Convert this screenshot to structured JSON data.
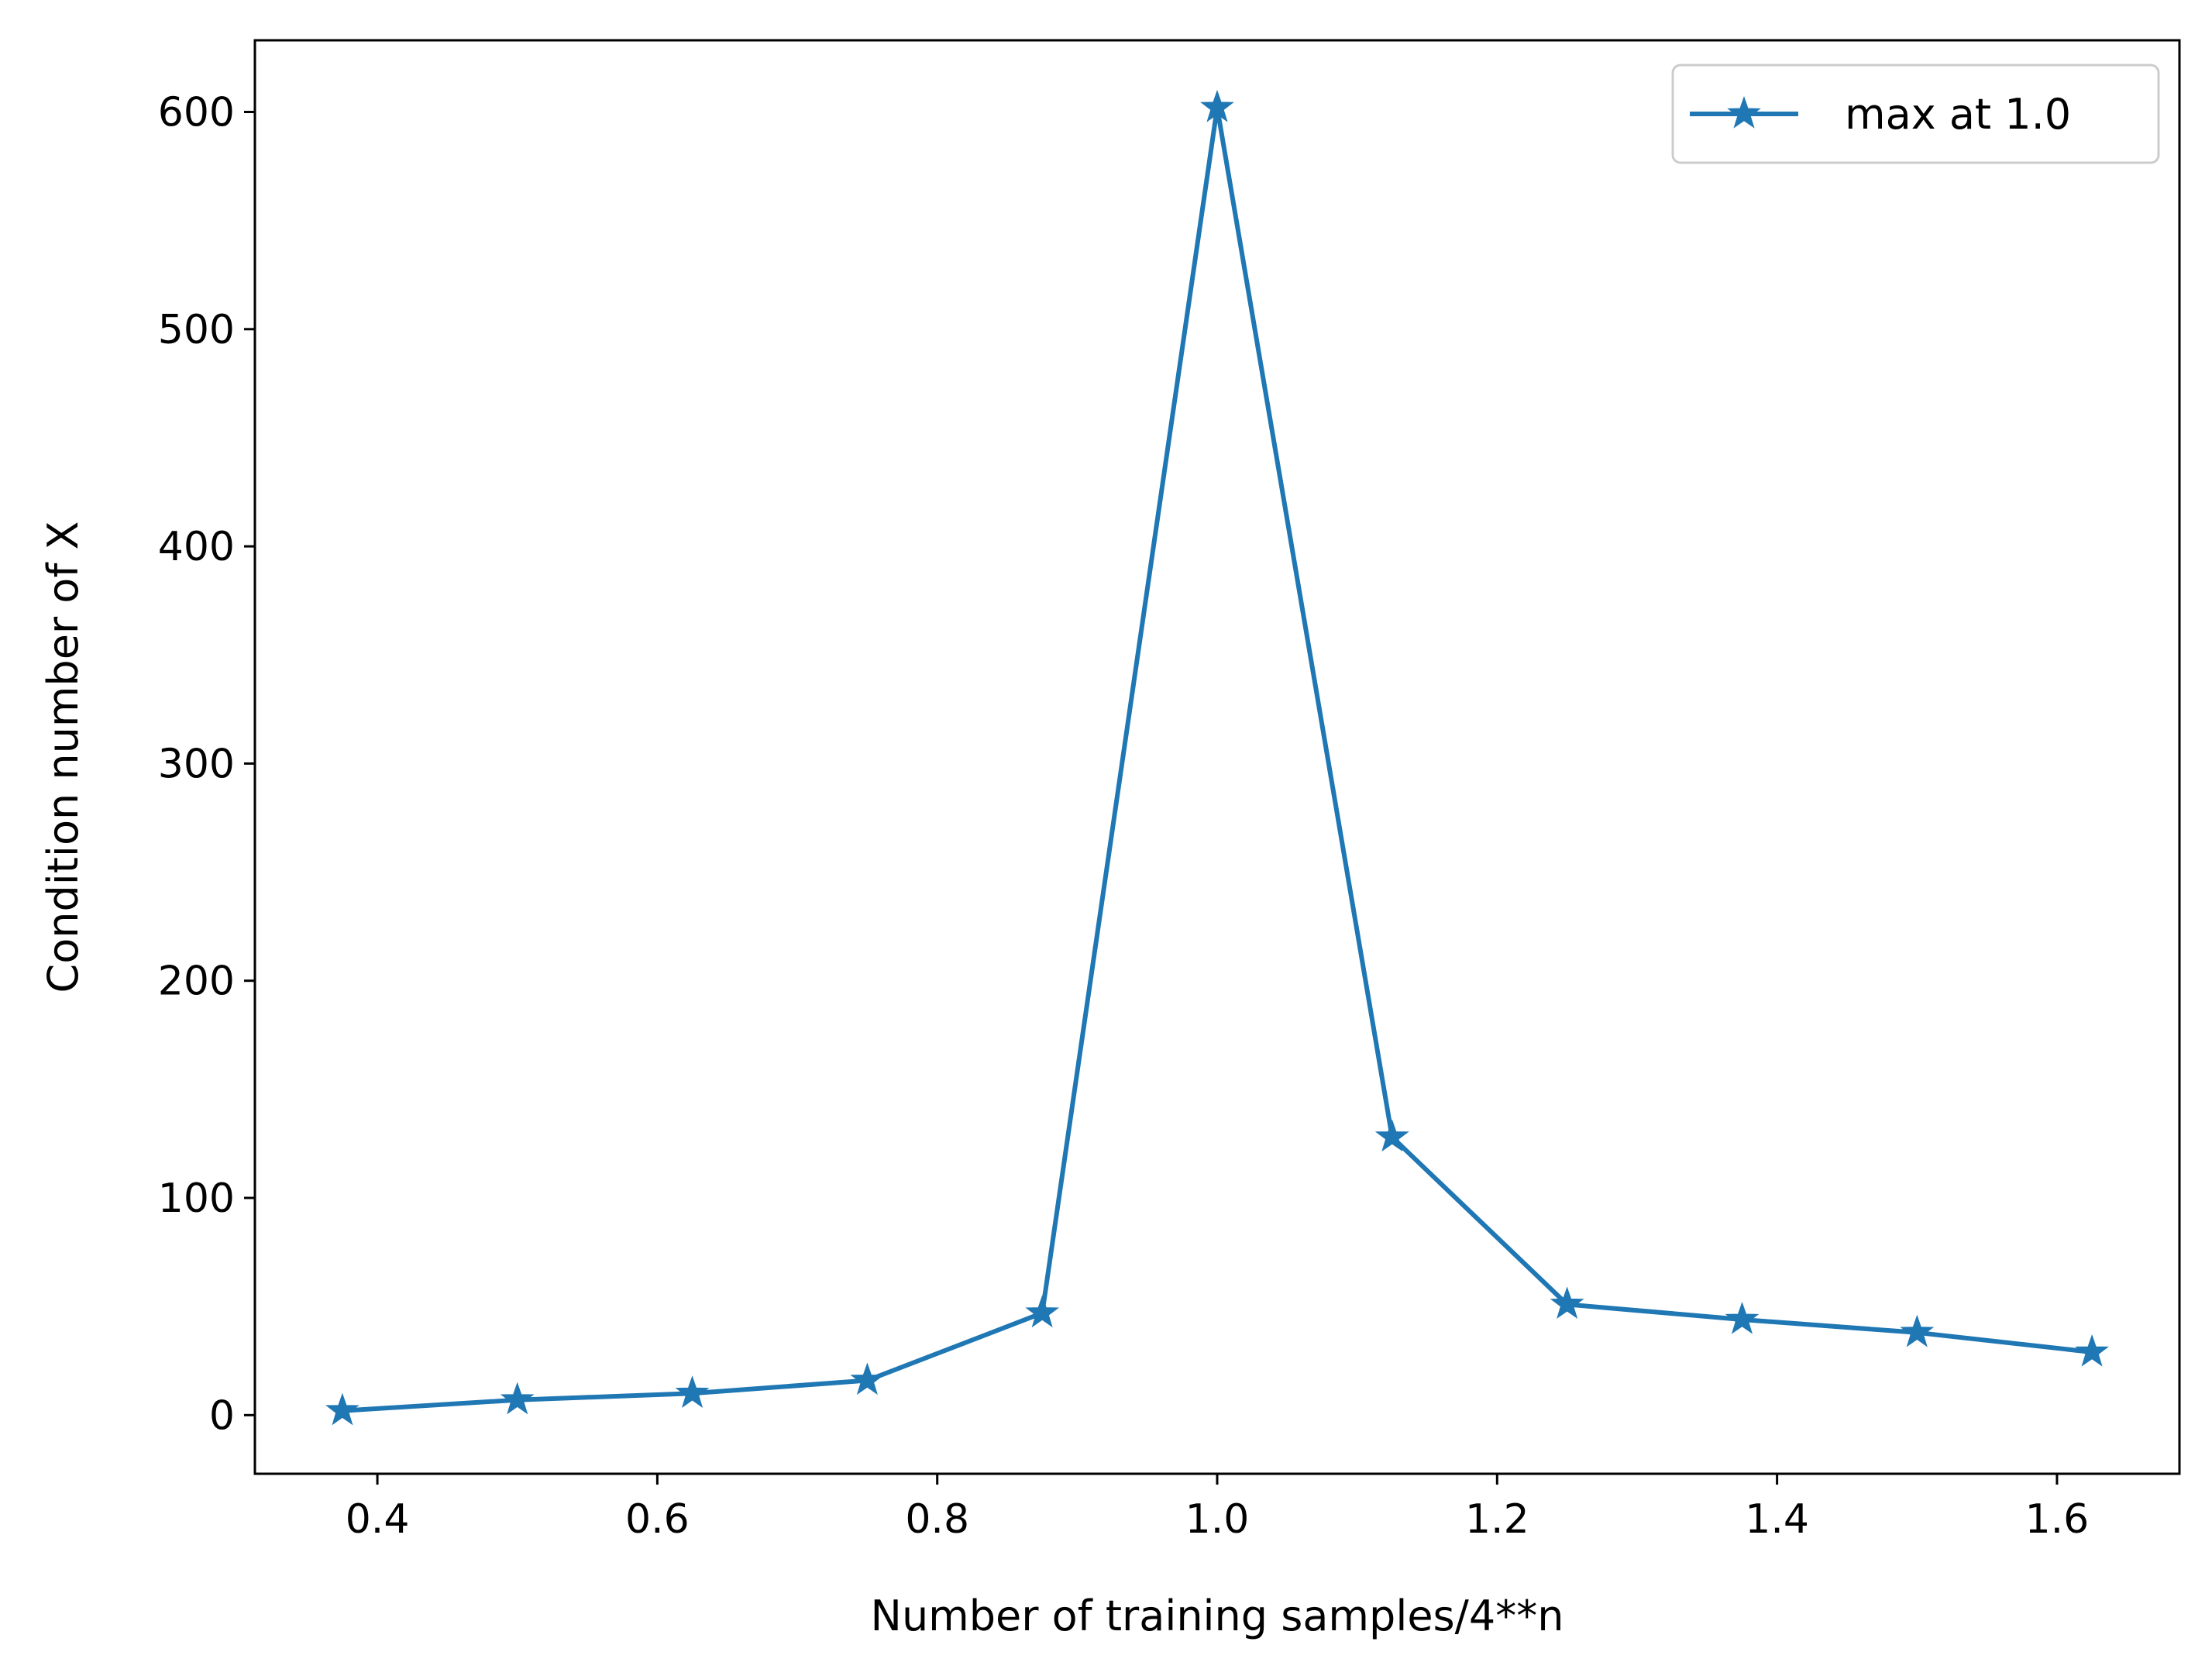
{
  "chart_data": {
    "type": "line",
    "title": "",
    "xlabel": "Number of training samples/4**n",
    "ylabel": "Condition number of X",
    "xlim": [
      0.3125,
      1.6875
    ],
    "ylim": [
      -27,
      633
    ],
    "xticks": [
      0.4,
      0.6,
      0.8,
      1.0,
      1.2,
      1.4,
      1.6
    ],
    "xtick_labels": [
      "0.4",
      "0.6",
      "0.8",
      "1.0",
      "1.2",
      "1.4",
      "1.6"
    ],
    "yticks": [
      0,
      100,
      200,
      300,
      400,
      500,
      600
    ],
    "ytick_labels": [
      "0",
      "100",
      "200",
      "300",
      "400",
      "500",
      "600"
    ],
    "grid": false,
    "legend_position": "top-right",
    "series": [
      {
        "name": "max at 1.0",
        "color": "#1f77b4",
        "marker": "star",
        "x": [
          0.375,
          0.5,
          0.625,
          0.75,
          0.875,
          1.0,
          1.125,
          1.25,
          1.375,
          1.5,
          1.625
        ],
        "y": [
          2,
          7,
          10,
          16,
          47,
          602,
          128,
          51,
          44,
          38,
          29
        ]
      }
    ]
  }
}
